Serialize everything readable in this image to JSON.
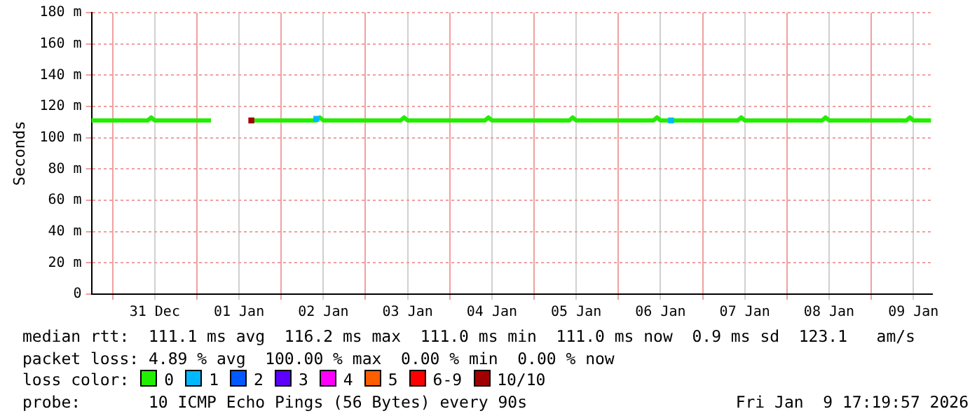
{
  "chart_data": {
    "type": "line",
    "ylabel": "Seconds",
    "legend_title": "loss color:",
    "legend": "bottom",
    "grid": true,
    "xlim": [
      "2025-12-30T18:00",
      "2026-01-09T17:20"
    ],
    "xticks": [
      {
        "value": "2025-12-31T00:00",
        "label": null
      },
      {
        "value": "2025-12-31T12:00",
        "label": "31 Dec"
      },
      {
        "value": "2026-01-01T00:00",
        "label": null
      },
      {
        "value": "2026-01-01T12:00",
        "label": "01 Jan"
      },
      {
        "value": "2026-01-02T00:00",
        "label": null
      },
      {
        "value": "2026-01-02T12:00",
        "label": "02 Jan"
      },
      {
        "value": "2026-01-03T00:00",
        "label": null
      },
      {
        "value": "2026-01-03T12:00",
        "label": "03 Jan"
      },
      {
        "value": "2026-01-04T00:00",
        "label": null
      },
      {
        "value": "2026-01-04T12:00",
        "label": "04 Jan"
      },
      {
        "value": "2026-01-05T00:00",
        "label": null
      },
      {
        "value": "2026-01-05T12:00",
        "label": "05 Jan"
      },
      {
        "value": "2026-01-06T00:00",
        "label": null
      },
      {
        "value": "2026-01-06T12:00",
        "label": "06 Jan"
      },
      {
        "value": "2026-01-07T00:00",
        "label": null
      },
      {
        "value": "2026-01-07T12:00",
        "label": "07 Jan"
      },
      {
        "value": "2026-01-08T00:00",
        "label": null
      },
      {
        "value": "2026-01-08T12:00",
        "label": "08 Jan"
      },
      {
        "value": "2026-01-09T00:00",
        "label": null
      },
      {
        "value": "2026-01-09T12:00",
        "label": "09 Jan"
      }
    ],
    "ylim": [
      0,
      180
    ],
    "yticks": [
      0,
      {
        "value": 20,
        "label": "20 m"
      },
      {
        "value": 40,
        "label": "40 m"
      },
      {
        "value": 60,
        "label": "60 m"
      },
      {
        "value": 80,
        "label": "80 m"
      },
      {
        "value": 100,
        "label": "100 m"
      },
      {
        "value": 120,
        "label": "120 m"
      },
      {
        "value": 140,
        "label": "140 m"
      },
      {
        "value": 160,
        "label": "160 m"
      },
      {
        "value": 180,
        "label": "180 m"
      }
    ],
    "series": [
      {
        "name": "0",
        "color": "#22ee00",
        "x": [
          "2025-12-30T18:00",
          "2025-12-31T10:00",
          "2025-12-31T11:00",
          "2025-12-31T12:00",
          "2026-01-01T04:00",
          "2026-01-01T05:00",
          "2026-01-01T15:30",
          "2026-01-02T10:00",
          "2026-01-02T11:00",
          "2026-01-02T12:00",
          "2026-01-02T16:00",
          "2026-01-03T10:00",
          "2026-01-03T11:00",
          "2026-01-03T12:00",
          "2026-01-04T10:00",
          "2026-01-04T11:00",
          "2026-01-04T12:00",
          "2026-01-05T10:00",
          "2026-01-05T11:00",
          "2026-01-05T12:00",
          "2026-01-06T10:00",
          "2026-01-06T11:00",
          "2026-01-06T12:00",
          "2026-01-07T10:00",
          "2026-01-07T11:00",
          "2026-01-07T12:00",
          "2026-01-08T10:00",
          "2026-01-08T11:00",
          "2026-01-08T12:00",
          "2026-01-09T10:00",
          "2026-01-09T11:00",
          "2026-01-09T12:00",
          "2026-01-09T17:00"
        ],
        "values": [
          111,
          111,
          113,
          111,
          111,
          null,
          111,
          111,
          113,
          111,
          111,
          111,
          113,
          111,
          111,
          113,
          111,
          111,
          113,
          111,
          111,
          113,
          111,
          111,
          113,
          111,
          111,
          113,
          111,
          111,
          113,
          111,
          111
        ]
      },
      {
        "name": "1",
        "color": "#00b8ff",
        "type": "scatter",
        "x": [
          "2026-01-02T10:00",
          "2026-01-06T15:00"
        ],
        "values": [
          112,
          111
        ]
      },
      {
        "name": "2",
        "color": "#0059ff",
        "type": "scatter"
      },
      {
        "name": "3",
        "color": "#5e00ff",
        "type": "scatter"
      },
      {
        "name": "4",
        "color": "#ff00fe",
        "type": "scatter"
      },
      {
        "name": "5",
        "color": "#ff5e00",
        "type": "scatter"
      },
      {
        "name": "6-9",
        "color": "#ff0000",
        "type": "scatter"
      },
      {
        "name": "10/10",
        "color": "#a00000",
        "type": "scatter",
        "x": [
          "2026-01-01T15:30"
        ],
        "values": [
          111
        ]
      }
    ],
    "annotations": [
      "median rtt:  111.1 ms avg  116.2 ms max  111.0 ms min  111.0 ms now  0.9 ms sd  123.1   am/s",
      "packet loss: 4.89 % avg  100.00 % max  0.00 % min  0.00 % now",
      "probe:       10 ICMP Echo Pings (56 Bytes) every 90s",
      "Fri Jan  9 17:19:57 2026"
    ]
  }
}
